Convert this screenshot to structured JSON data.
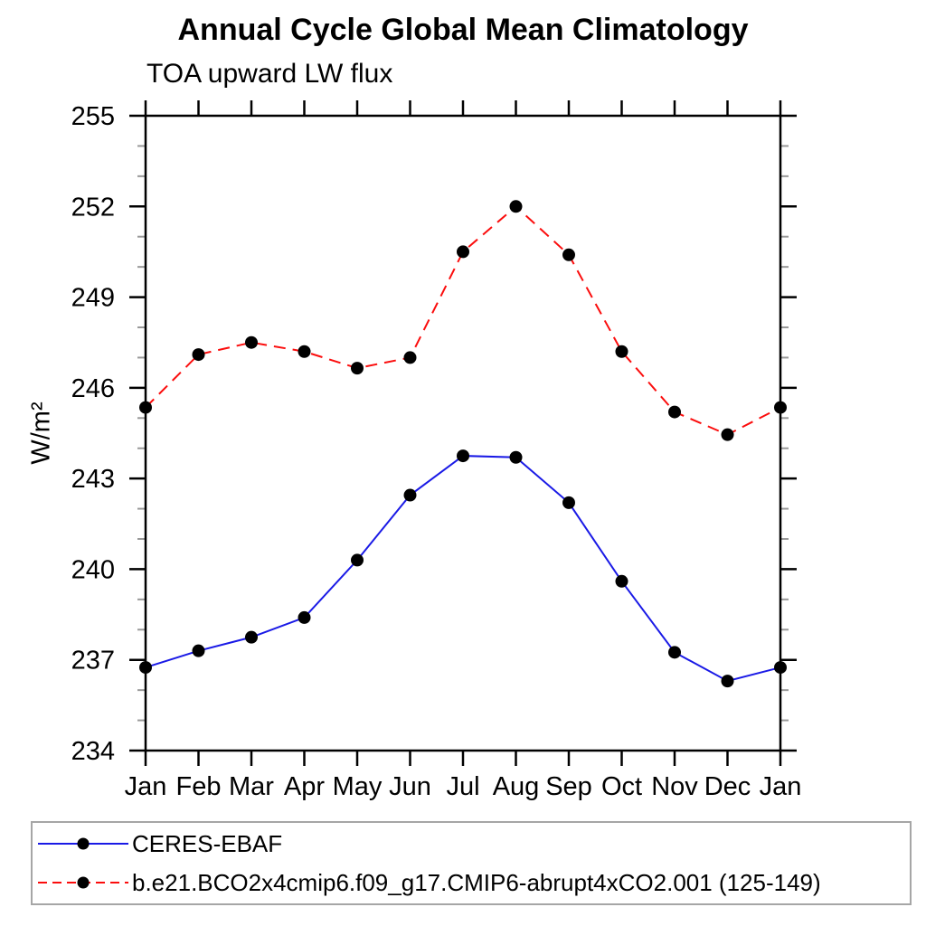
{
  "page": {
    "background": "#ffffff"
  },
  "chart_data": {
    "type": "line",
    "title": "Annual Cycle Global Mean Climatology",
    "subtitle": "TOA upward LW flux",
    "ylabel": "W/m²",
    "xlabel": "",
    "x_categories": [
      "Jan",
      "Feb",
      "Mar",
      "Apr",
      "May",
      "Jun",
      "Jul",
      "Aug",
      "Sep",
      "Oct",
      "Nov",
      "Dec",
      "Jan"
    ],
    "ylim": [
      234,
      255
    ],
    "ytick_major": [
      234,
      237,
      240,
      243,
      246,
      249,
      252,
      255
    ],
    "ytick_minor_step": 1,
    "grid": false,
    "legend_position": "bottom",
    "axis_color": "#000000",
    "minor_tick_color": "#999999",
    "marker_color": "#000000",
    "series": [
      {
        "name": "CERES-EBAF",
        "color": "#1a1ae6",
        "line_style": "solid",
        "marker": "filled-circle",
        "values": [
          236.75,
          237.3,
          237.75,
          238.4,
          240.3,
          242.45,
          243.75,
          243.7,
          242.2,
          239.6,
          237.25,
          236.3,
          236.75
        ]
      },
      {
        "name": "b.e21.BCO2x4cmip6.f09_g17.CMIP6-abrupt4xCO2.001 (125-149)",
        "color": "#fb0d0d",
        "line_style": "dashed",
        "marker": "filled-circle",
        "values": [
          245.35,
          247.1,
          247.5,
          247.2,
          246.65,
          247.0,
          250.5,
          252.0,
          250.4,
          247.2,
          245.2,
          244.45,
          245.35
        ]
      }
    ]
  }
}
